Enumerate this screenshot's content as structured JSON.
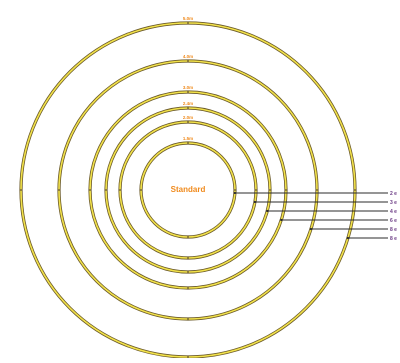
{
  "diagram": {
    "center_label": "Standard",
    "rings": [
      {
        "label": "1.5m"
      },
      {
        "label": "2.0m"
      },
      {
        "label": "2.4m"
      },
      {
        "label": "3.0m"
      },
      {
        "label": "4.0m"
      },
      {
        "label": "5.0m"
      }
    ],
    "legend": [
      {
        "label": "2 e"
      },
      {
        "label": "3 e"
      },
      {
        "label": "4 e"
      },
      {
        "label": "6 e"
      },
      {
        "label": "8 e"
      },
      {
        "label": "8 e"
      }
    ],
    "colors": {
      "ring_outer": "#6b5a2a",
      "ring_inner": "#f2e24a",
      "label_orange": "#f08a1c",
      "legend_purple": "#6a3a84",
      "leader_line": "#2b2b2b"
    }
  }
}
